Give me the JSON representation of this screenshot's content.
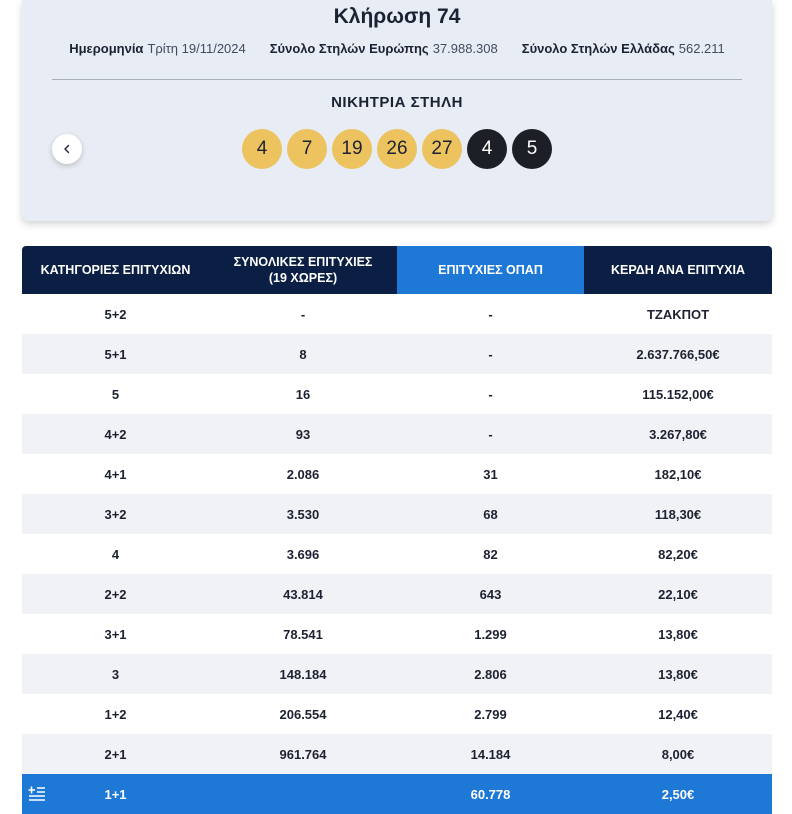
{
  "draw": {
    "title": "Κλήρωση 74",
    "meta": [
      {
        "label": "Ημερομηνία",
        "value": "Τρίτη 19/11/2024"
      },
      {
        "label": "Σύνολο Στηλών Ευρώπης",
        "value": "37.988.308"
      },
      {
        "label": "Σύνολο Στηλών Ελλάδας",
        "value": "562.211"
      }
    ],
    "winning_label": "ΝΙΚΗΤΡΙΑ ΣΤΗΛΗ",
    "numbers": [
      "4",
      "7",
      "19",
      "26",
      "27"
    ],
    "stars": [
      "4",
      "5"
    ],
    "prev_icon": "chevron-left-icon"
  },
  "table": {
    "headers": {
      "categories": "ΚΑΤΗΓΟΡΙΕΣ ΕΠΙΤΥΧΙΩΝ",
      "total": "ΣΥΝΟΛΙΚΕΣ ΕΠΙΤΥΧΙΕΣ (19 ΧΩΡΕΣ)",
      "opap": "ΕΠΙΤΥΧΙΕΣ ΟΠΑΠ",
      "prize": "ΚΕΡΔΗ ΑΝΑ ΕΠΙΤΥΧΙΑ"
    },
    "rows": [
      {
        "cat": "5+2",
        "total": "-",
        "opap": "-",
        "prize": "ΤΖΑΚΠΟΤ"
      },
      {
        "cat": "5+1",
        "total": "8",
        "opap": "-",
        "prize": "2.637.766,50€"
      },
      {
        "cat": "5",
        "total": "16",
        "opap": "-",
        "prize": "115.152,00€"
      },
      {
        "cat": "4+2",
        "total": "93",
        "opap": "-",
        "prize": "3.267,80€"
      },
      {
        "cat": "4+1",
        "total": "2.086",
        "opap": "31",
        "prize": "182,10€"
      },
      {
        "cat": "3+2",
        "total": "3.530",
        "opap": "68",
        "prize": "118,30€"
      },
      {
        "cat": "4",
        "total": "3.696",
        "opap": "82",
        "prize": "82,20€"
      },
      {
        "cat": "2+2",
        "total": "43.814",
        "opap": "643",
        "prize": "22,10€"
      },
      {
        "cat": "3+1",
        "total": "78.541",
        "opap": "1.299",
        "prize": "13,80€"
      },
      {
        "cat": "3",
        "total": "148.184",
        "opap": "2.806",
        "prize": "13,80€"
      },
      {
        "cat": "1+2",
        "total": "206.554",
        "opap": "2.799",
        "prize": "12,40€"
      },
      {
        "cat": "2+1",
        "total": "961.764",
        "opap": "14.184",
        "prize": "8,00€"
      },
      {
        "cat": "1+1",
        "total": "",
        "opap": "60.778",
        "prize": "2,50€",
        "highlight": true
      }
    ],
    "highlight_icon": "greek-flag-icon"
  }
}
